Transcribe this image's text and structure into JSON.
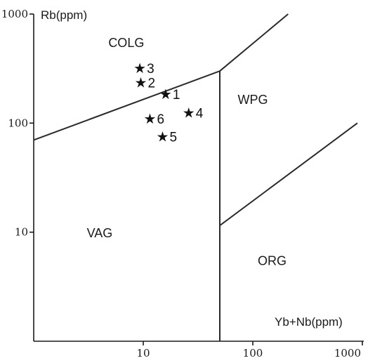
{
  "chart_data": {
    "type": "scatter",
    "xlabel": "Yb+Nb(ppm)",
    "ylabel": "Rb(ppm)",
    "x_scale": "log",
    "y_scale": "log",
    "xlim": [
      1,
      1000
    ],
    "ylim": [
      1,
      1000
    ],
    "x_ticks": [
      "10",
      "100",
      "1000"
    ],
    "y_ticks": [
      "1000",
      "100",
      "10"
    ],
    "grid": false,
    "fields": [
      {
        "name": "COLG",
        "label_at": [
          7,
          500
        ]
      },
      {
        "name": "WPG",
        "label_at": [
          100,
          150
        ]
      },
      {
        "name": "VAG",
        "label_at": [
          4,
          9
        ]
      },
      {
        "name": "ORG",
        "label_at": [
          150,
          5
        ]
      }
    ],
    "boundaries": [
      {
        "id": "colg-vag",
        "points": [
          [
            1,
            70
          ],
          [
            50,
            300
          ]
        ]
      },
      {
        "id": "colg-wpg",
        "points": [
          [
            50,
            300
          ],
          [
            210,
            1000
          ]
        ]
      },
      {
        "id": "vag-wpg-org",
        "points": [
          [
            50,
            300
          ],
          [
            50,
            1
          ]
        ]
      },
      {
        "id": "wpg-org",
        "points": [
          [
            50,
            11.5
          ],
          [
            900,
            100
          ]
        ]
      }
    ],
    "points": [
      {
        "label": "1",
        "x": 16,
        "y": 185
      },
      {
        "label": "2",
        "x": 9.5,
        "y": 235
      },
      {
        "label": "3",
        "x": 9.3,
        "y": 320
      },
      {
        "label": "4",
        "x": 26,
        "y": 125
      },
      {
        "label": "5",
        "x": 15,
        "y": 75
      },
      {
        "label": "6",
        "x": 11.5,
        "y": 110
      }
    ],
    "marker": "★"
  }
}
